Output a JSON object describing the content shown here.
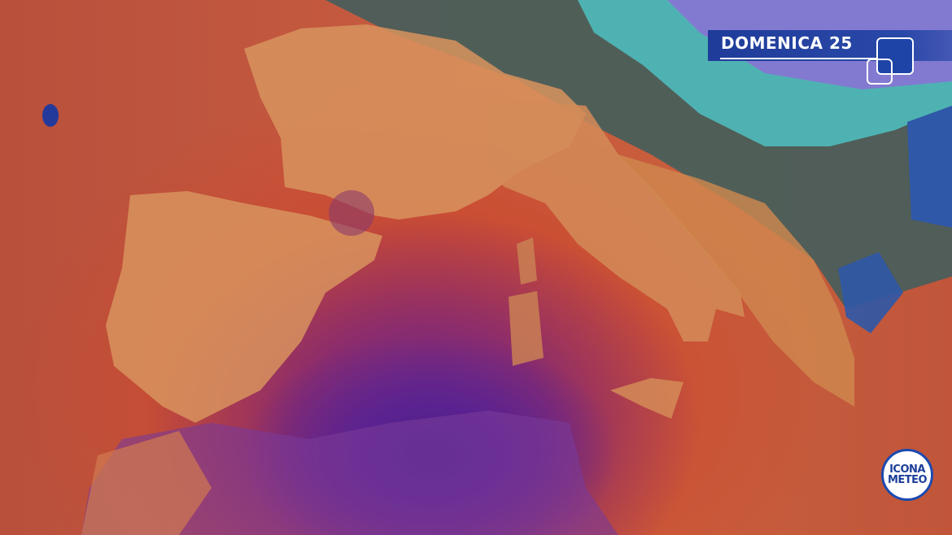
{
  "header": {
    "title": "DOMENICA 25"
  },
  "logo": {
    "line1": "ICONA",
    "line2": "METEO"
  },
  "colors": {
    "banner": "#2a48a8",
    "hot": "#c8603e",
    "land": "#d89060",
    "purple": "#4a1f86",
    "cold": "#4fd6d6",
    "logo_blue": "#1c4ab0"
  }
}
